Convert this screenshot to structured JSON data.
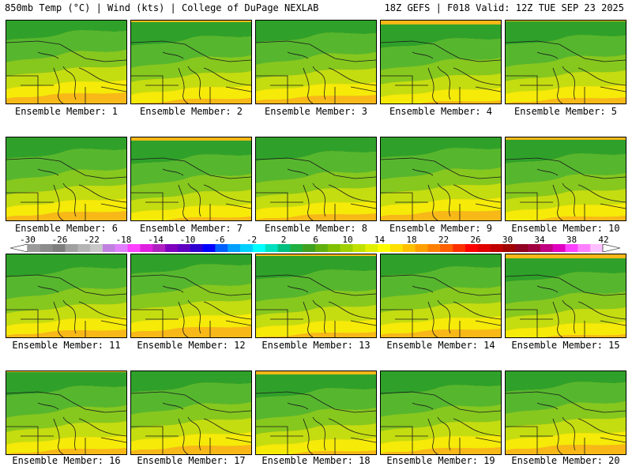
{
  "header": {
    "left_title": "850mb Temp (°C) | Wind (kts) | College of DuPage NEXLAB",
    "right_title": "18Z GEFS | F018 Valid: 12Z TUE SEP 23 2025"
  },
  "label_prefix": "Ensemble Member: ",
  "members": [
    {
      "label": "Ensemble Member: 1"
    },
    {
      "label": "Ensemble Member: 2"
    },
    {
      "label": "Ensemble Member: 3"
    },
    {
      "label": "Ensemble Member: 4"
    },
    {
      "label": "Ensemble Member: 5"
    },
    {
      "label": "Ensemble Member: 6"
    },
    {
      "label": "Ensemble Member: 7"
    },
    {
      "label": "Ensemble Member: 8"
    },
    {
      "label": "Ensemble Member: 9"
    },
    {
      "label": "Ensemble Member: 10"
    },
    {
      "label": "Ensemble Member: 11"
    },
    {
      "label": "Ensemble Member: 12"
    },
    {
      "label": "Ensemble Member: 13"
    },
    {
      "label": "Ensemble Member: 14"
    },
    {
      "label": "Ensemble Member: 15"
    },
    {
      "label": "Ensemble Member: 16"
    },
    {
      "label": "Ensemble Member: 17"
    },
    {
      "label": "Ensemble Member: 18"
    },
    {
      "label": "Ensemble Member: 19"
    },
    {
      "label": "Ensemble Member: 20"
    }
  ],
  "colorbar": {
    "ticks": [
      "-30",
      "-26",
      "-22",
      "-18",
      "-14",
      "-10",
      "-6",
      "-2",
      "2",
      "6",
      "10",
      "14",
      "18",
      "22",
      "26",
      "30",
      "34",
      "38",
      "42"
    ],
    "colors": [
      "#9a9a9a",
      "#8c8c8c",
      "#7e7e7e",
      "#a0a0a0",
      "#b4b4b4",
      "#c8c8c8",
      "#c080e0",
      "#e080ff",
      "#ff40ff",
      "#e020e0",
      "#b020c0",
      "#8000c0",
      "#6000c0",
      "#3000d0",
      "#0000ff",
      "#0060ff",
      "#00a0ff",
      "#00d0ff",
      "#00ffff",
      "#00e0c0",
      "#00c080",
      "#20b040",
      "#40a020",
      "#60b010",
      "#80c000",
      "#a0d000",
      "#c0e000",
      "#e0f000",
      "#ffff00",
      "#ffe000",
      "#ffc000",
      "#ffa000",
      "#ff8000",
      "#ff6000",
      "#ff3000",
      "#ff0000",
      "#e00000",
      "#c00000",
      "#a00000",
      "#900020",
      "#a00040",
      "#c00080",
      "#e000c0",
      "#ff40ff",
      "#ff80ff",
      "#ffc0ff"
    ]
  }
}
